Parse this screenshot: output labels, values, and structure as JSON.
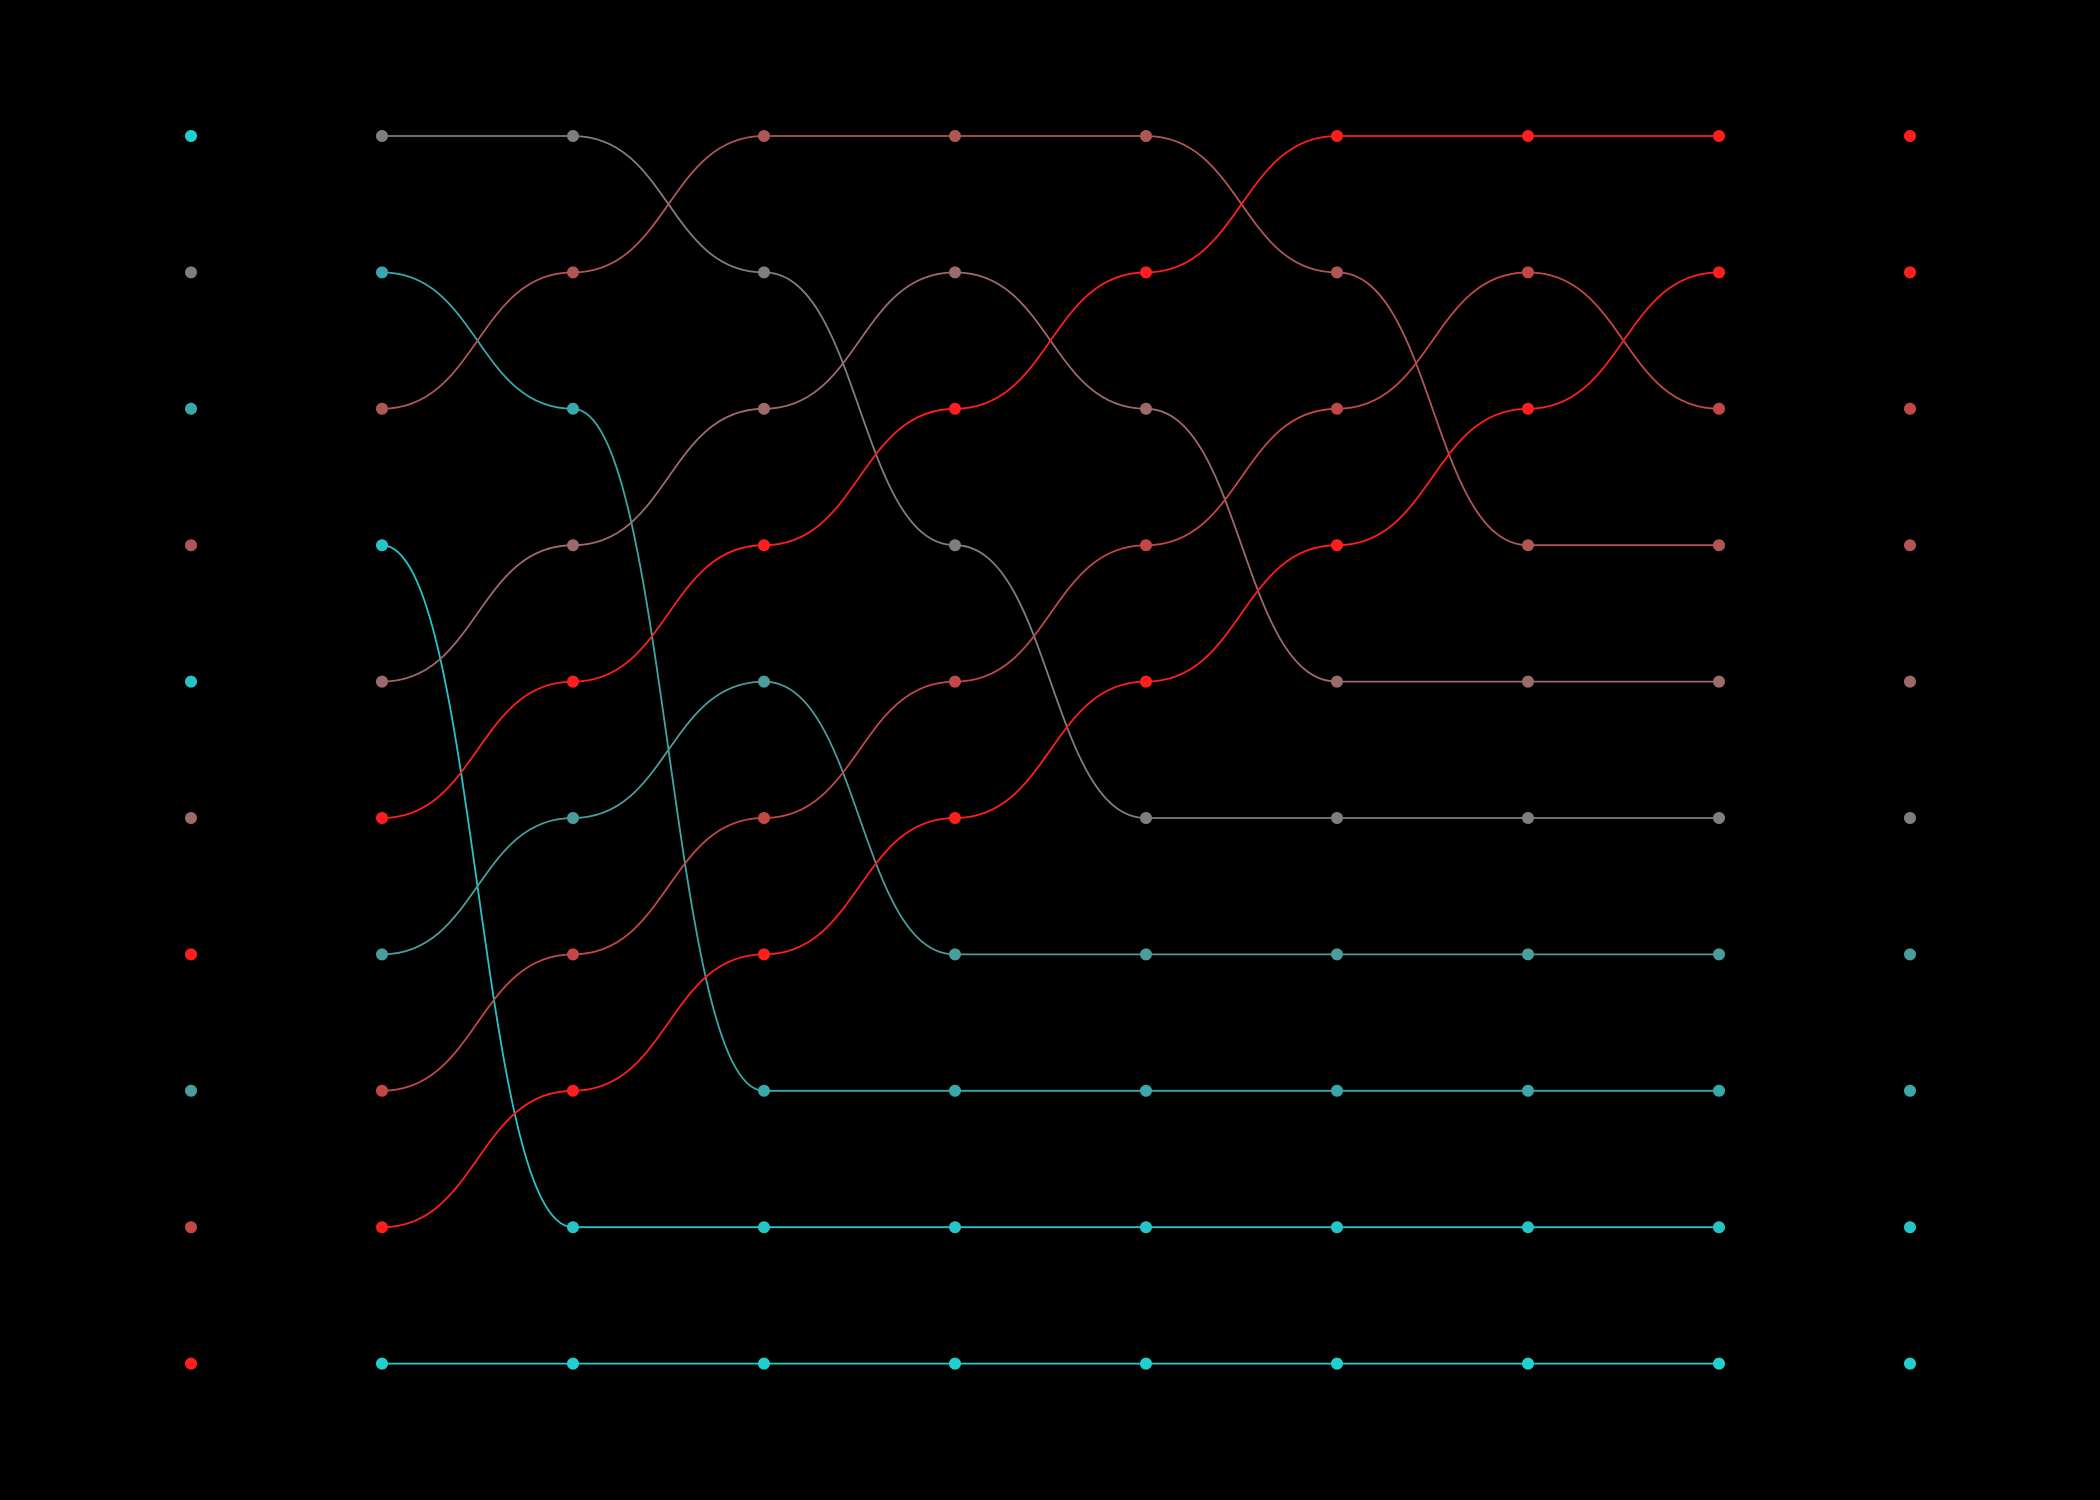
{
  "diagram": {
    "type": "sorting-network-visualization",
    "background": "#000000",
    "elements": [
      {
        "id": 0,
        "color": "#20D0D0"
      },
      {
        "id": 1,
        "color": "#26C4C6"
      },
      {
        "id": 2,
        "color": "#39A8AA"
      },
      {
        "id": 3,
        "color": "#4B9C9C"
      },
      {
        "id": 4,
        "color": "#7A8585"
      },
      {
        "id": 5,
        "color": "#7E7E7E"
      },
      {
        "id": 6,
        "color": "#9C6A6A"
      },
      {
        "id": 7,
        "color": "#B05656"
      },
      {
        "id": 8,
        "color": "#C24848"
      },
      {
        "id": 9,
        "color": "#FF1E1E"
      }
    ],
    "steps": [
      [
        1,
        5,
        0,
        7,
        2,
        6,
        9,
        3,
        8,
        9
      ],
      [
        5,
        0,
        7,
        2,
        6,
        9,
        3,
        8,
        9,
        1
      ],
      [
        5,
        7,
        2,
        6,
        9,
        3,
        8,
        9,
        0,
        1
      ],
      [
        7,
        2,
        6,
        9,
        3,
        8,
        9,
        5,
        0,
        1
      ],
      [
        7,
        9,
        9,
        8,
        2,
        9,
        3,
        5,
        0,
        1
      ],
      [
        7,
        6,
        9,
        8,
        9,
        2,
        9,
        3,
        0,
        1
      ],
      [
        9,
        7,
        6,
        9,
        8,
        6,
        5,
        3,
        0,
        1
      ],
      [
        9,
        7,
        9,
        9,
        9,
        6,
        5,
        3,
        2,
        1
      ],
      [
        9,
        9,
        7,
        7,
        6,
        5,
        3,
        2,
        1,
        0
      ],
      [
        9,
        9,
        8,
        7,
        6,
        5,
        3,
        2,
        1,
        0
      ]
    ],
    "unsorted_column": [
      "#20D0D0",
      "#7E7E7E",
      "#39A8AA",
      "#B05656",
      "#26C4C6",
      "#9C6A6A",
      "#FF1E1E",
      "#4B9C9C",
      "#C24848",
      "#FF1E1E"
    ],
    "columns": [
      [
        "#7E7E7E",
        "#39A8AA",
        "#B05656",
        "#26C4C6",
        "#9C6A6A",
        "#FF1E1E",
        "#4B9C9C",
        "#C24848",
        "#FF1E1E",
        "#20D0D0"
      ],
      [
        "#7E7E7E",
        "#B05656",
        "#39A8AA",
        "#9C6A6A",
        "#FF1E1E",
        "#4B9C9C",
        "#C24848",
        "#FF1E1E",
        "#26C4C6",
        "#20D0D0"
      ],
      [
        "#B05656",
        "#7E7E7E",
        "#9C6A6A",
        "#FF1E1E",
        "#4B9C9C",
        "#C24848",
        "#FF1E1E",
        "#39A8AA",
        "#26C4C6",
        "#20D0D0"
      ],
      [
        "#B05656",
        "#9C6A6A",
        "#FF1E1E",
        "#7E7E7E",
        "#C24848",
        "#FF1E1E",
        "#4B9C9C",
        "#39A8AA",
        "#26C4C6",
        "#20D0D0"
      ],
      [
        "#B05656",
        "#FF1E1E",
        "#9C6A6A",
        "#C24848",
        "#FF1E1E",
        "#7E7E7E",
        "#4B9C9C",
        "#39A8AA",
        "#26C4C6",
        "#20D0D0"
      ],
      [
        "#FF1E1E",
        "#B05656",
        "#C24848",
        "#FF1E1E",
        "#9C6A6A",
        "#7E7E7E",
        "#4B9C9C",
        "#39A8AA",
        "#26C4C6",
        "#20D0D0"
      ],
      [
        "#FF1E1E",
        "#C24848",
        "#FF1E1E",
        "#B05656",
        "#9C6A6A",
        "#7E7E7E",
        "#4B9C9C",
        "#39A8AA",
        "#26C4C6",
        "#20D0D0"
      ],
      [
        "#FF1E1E",
        "#FF1E1E",
        "#C24848",
        "#B05656",
        "#9C6A6A",
        "#7E7E7E",
        "#4B9C9C",
        "#39A8AA",
        "#26C4C6",
        "#20D0D0"
      ]
    ],
    "sorted_column": [
      "#FF1E1E",
      "#FF1E1E",
      "#C24848",
      "#B05656",
      "#9C6A6A",
      "#7E7E7E",
      "#4B9C9C",
      "#39A8AA",
      "#26C4C6",
      "#20D0D0"
    ],
    "curves": [
      {
        "color": "#7E7E7E",
        "rows": [
          0,
          0,
          1,
          3,
          5,
          5,
          5,
          5
        ]
      },
      {
        "color": "#39A8AA",
        "rows": [
          1,
          2,
          7,
          7,
          7,
          7,
          7,
          7
        ]
      },
      {
        "color": "#B05656",
        "rows": [
          2,
          1,
          0,
          0,
          0,
          1,
          3,
          3
        ]
      },
      {
        "color": "#26C4C6",
        "rows": [
          3,
          8,
          8,
          8,
          8,
          8,
          8,
          8
        ]
      },
      {
        "color": "#9C6A6A",
        "rows": [
          4,
          3,
          2,
          1,
          2,
          4,
          4,
          4
        ]
      },
      {
        "color": "#FF1E1E",
        "rows": [
          5,
          4,
          3,
          2,
          1,
          0,
          0,
          0
        ]
      },
      {
        "color": "#4B9C9C",
        "rows": [
          6,
          5,
          4,
          6,
          6,
          6,
          6,
          6
        ]
      },
      {
        "color": "#C24848",
        "rows": [
          7,
          6,
          5,
          4,
          3,
          2,
          1,
          2
        ]
      },
      {
        "color": "#FF1E1E",
        "rows": [
          8,
          7,
          6,
          5,
          4,
          3,
          2,
          1
        ]
      },
      {
        "color": "#20D0D0",
        "rows": [
          9,
          9,
          9,
          9,
          9,
          9,
          9,
          9
        ]
      }
    ]
  }
}
